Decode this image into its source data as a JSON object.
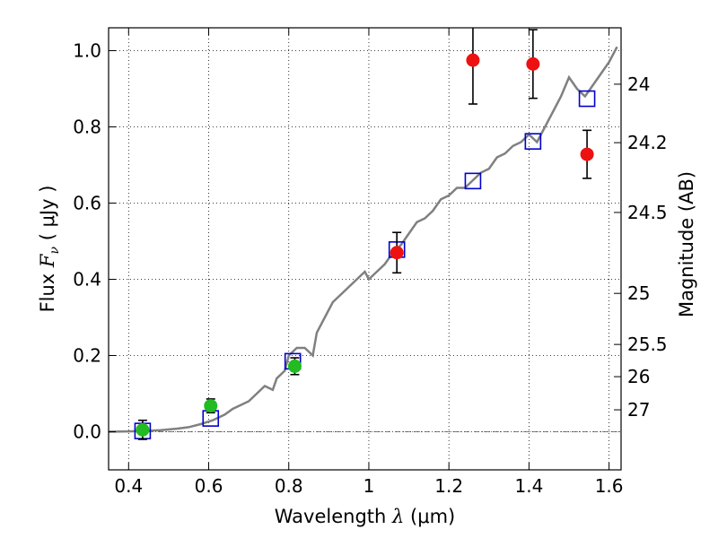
{
  "chart_data": {
    "type": "scatter",
    "title": "",
    "xlabel_text": "Wavelength",
    "xlabel_symbol": "λ",
    "xlabel_unit": "(μm)",
    "ylabel_text": "Flux",
    "ylabel_symbol": "F",
    "ylabel_sub": "ν",
    "ylabel_unit": "( μJy )",
    "y2label": "Magnitude (AB)",
    "xlim": [
      0.35,
      1.63
    ],
    "ylim": [
      -0.1,
      1.06
    ],
    "grid": true,
    "x_ticks": [
      {
        "value": 0.4,
        "label": "0.4"
      },
      {
        "value": 0.6,
        "label": "0.6"
      },
      {
        "value": 0.8,
        "label": "0.8"
      },
      {
        "value": 1.0,
        "label": "1"
      },
      {
        "value": 1.2,
        "label": "1.2"
      },
      {
        "value": 1.4,
        "label": "1.4"
      },
      {
        "value": 1.6,
        "label": "1.6"
      }
    ],
    "y_ticks": [
      {
        "value": 0.0,
        "label": "0.0"
      },
      {
        "value": 0.2,
        "label": "0.2"
      },
      {
        "value": 0.4,
        "label": "0.4"
      },
      {
        "value": 0.6,
        "label": "0.6"
      },
      {
        "value": 0.8,
        "label": "0.8"
      },
      {
        "value": 1.0,
        "label": "1.0"
      }
    ],
    "y2_ticks": [
      {
        "magnitude": 24,
        "label": "24"
      },
      {
        "magnitude": 24.2,
        "label": "24.2"
      },
      {
        "magnitude": 24.5,
        "label": "24.5"
      },
      {
        "magnitude": 25,
        "label": "25"
      },
      {
        "magnitude": 25.5,
        "label": "25.5"
      },
      {
        "magnitude": 26,
        "label": "26"
      },
      {
        "magnitude": 27,
        "label": "27"
      }
    ],
    "series": [
      {
        "kind": "line",
        "color": "#808080",
        "points": [
          [
            0.35,
            0.0
          ],
          [
            0.4,
            0.001
          ],
          [
            0.44,
            0.002
          ],
          [
            0.48,
            0.004
          ],
          [
            0.52,
            0.008
          ],
          [
            0.55,
            0.012
          ],
          [
            0.58,
            0.02
          ],
          [
            0.61,
            0.03
          ],
          [
            0.64,
            0.045
          ],
          [
            0.66,
            0.06
          ],
          [
            0.68,
            0.07
          ],
          [
            0.7,
            0.08
          ],
          [
            0.72,
            0.1
          ],
          [
            0.74,
            0.12
          ],
          [
            0.76,
            0.11
          ],
          [
            0.77,
            0.14
          ],
          [
            0.79,
            0.16
          ],
          [
            0.8,
            0.2
          ],
          [
            0.82,
            0.22
          ],
          [
            0.84,
            0.22
          ],
          [
            0.86,
            0.2
          ],
          [
            0.87,
            0.26
          ],
          [
            0.89,
            0.3
          ],
          [
            0.91,
            0.34
          ],
          [
            0.93,
            0.36
          ],
          [
            0.95,
            0.38
          ],
          [
            0.97,
            0.4
          ],
          [
            0.99,
            0.42
          ],
          [
            1.0,
            0.4
          ],
          [
            1.02,
            0.42
          ],
          [
            1.04,
            0.44
          ],
          [
            1.06,
            0.47
          ],
          [
            1.08,
            0.49
          ],
          [
            1.1,
            0.52
          ],
          [
            1.12,
            0.55
          ],
          [
            1.14,
            0.56
          ],
          [
            1.16,
            0.58
          ],
          [
            1.18,
            0.61
          ],
          [
            1.2,
            0.62
          ],
          [
            1.22,
            0.64
          ],
          [
            1.24,
            0.64
          ],
          [
            1.26,
            0.66
          ],
          [
            1.28,
            0.68
          ],
          [
            1.3,
            0.69
          ],
          [
            1.32,
            0.72
          ],
          [
            1.34,
            0.73
          ],
          [
            1.36,
            0.75
          ],
          [
            1.38,
            0.76
          ],
          [
            1.4,
            0.78
          ],
          [
            1.42,
            0.76
          ],
          [
            1.44,
            0.8
          ],
          [
            1.46,
            0.84
          ],
          [
            1.48,
            0.88
          ],
          [
            1.5,
            0.93
          ],
          [
            1.52,
            0.9
          ],
          [
            1.54,
            0.88
          ],
          [
            1.56,
            0.91
          ],
          [
            1.58,
            0.94
          ],
          [
            1.6,
            0.97
          ],
          [
            1.62,
            1.01
          ]
        ]
      },
      {
        "kind": "model-squares",
        "color": "#0000cc",
        "points": [
          [
            0.435,
            0.002
          ],
          [
            0.605,
            0.035
          ],
          [
            0.81,
            0.185
          ],
          [
            1.07,
            0.478
          ],
          [
            1.26,
            0.658
          ],
          [
            1.41,
            0.762
          ],
          [
            1.545,
            0.874
          ]
        ]
      },
      {
        "kind": "obs-green",
        "color": "#22bb22",
        "points": [
          {
            "x": 0.435,
            "y": 0.005,
            "err": 0.025
          },
          {
            "x": 0.605,
            "y": 0.068,
            "err": 0.018
          },
          {
            "x": 0.815,
            "y": 0.172,
            "err": 0.022
          }
        ]
      },
      {
        "kind": "obs-red",
        "color": "#ee1111",
        "points": [
          {
            "x": 1.07,
            "y": 0.47,
            "err": 0.053
          },
          {
            "x": 1.26,
            "y": 0.975,
            "err": 0.115
          },
          {
            "x": 1.41,
            "y": 0.965,
            "err": 0.09
          },
          {
            "x": 1.545,
            "y": 0.728,
            "err": 0.063
          }
        ]
      }
    ]
  }
}
